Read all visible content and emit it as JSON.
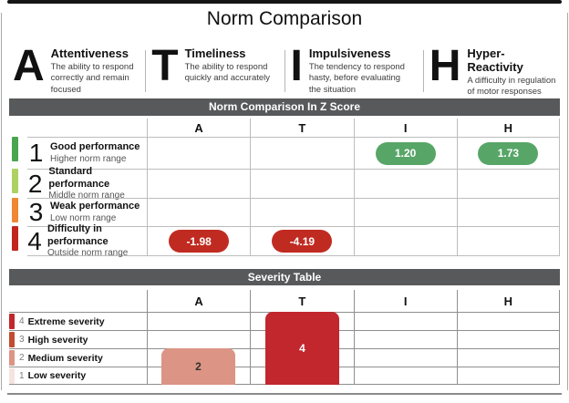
{
  "title": "Norm Comparison",
  "legend": {
    "items": [
      {
        "letter": "A",
        "name": "Attentiveness",
        "description": "The ability to respond correctly and remain focused"
      },
      {
        "letter": "T",
        "name": "Timeliness",
        "description": "The ability to respond quickly and accurately"
      },
      {
        "letter": "I",
        "name": "Impulsiveness",
        "description": "The tendency to respond hasty, before evaluating the situation"
      },
      {
        "letter": "H",
        "name": "Hyper-Reactivity",
        "description": "A difficulty in regulation of motor responses"
      }
    ]
  },
  "z_score_section": {
    "header": "Norm Comparison In Z Score",
    "columns": [
      "A",
      "T",
      "I",
      "H"
    ],
    "rows": [
      {
        "rank": "1",
        "label": "Good performance",
        "sublabel": "Higher norm range",
        "tick_color": "#4aa54e",
        "values": {
          "I": "1.20",
          "H": "1.73"
        }
      },
      {
        "rank": "2",
        "label": "Standard performance",
        "sublabel": "Middle norm range",
        "tick_color": "#aed164",
        "values": {}
      },
      {
        "rank": "3",
        "label": "Weak performance",
        "sublabel": "Low norm range",
        "tick_color": "#ef8733",
        "values": {}
      },
      {
        "rank": "4",
        "label": "Difficulty in performance",
        "sublabel": "Outside norm range",
        "tick_color": "#c2241e",
        "values": {
          "A": "-1.98",
          "T": "-4.19"
        }
      }
    ]
  },
  "severity_section": {
    "header": "Severity Table",
    "columns": [
      "A",
      "T",
      "I",
      "H"
    ],
    "rows": [
      {
        "rank": "4",
        "label": "Extreme severity",
        "tick_color": "#c1272d"
      },
      {
        "rank": "3",
        "label": "High severity",
        "tick_color": "#c34b30"
      },
      {
        "rank": "2",
        "label": "Medium severity",
        "tick_color": "#dc9485"
      },
      {
        "rank": "1",
        "label": "Low severity",
        "tick_color": "#f6e3de"
      }
    ],
    "bars": [
      {
        "column": "A",
        "value": "2",
        "rows_spanned": 2,
        "color": "#dc9485"
      },
      {
        "column": "T",
        "value": "4",
        "rows_spanned": 4,
        "color": "#c1272d"
      }
    ]
  },
  "colors": {
    "section_header_bar": "#58595b",
    "positive_pill": "#57a667",
    "negative_pill": "#c02b21",
    "top_bar": "#151515"
  }
}
